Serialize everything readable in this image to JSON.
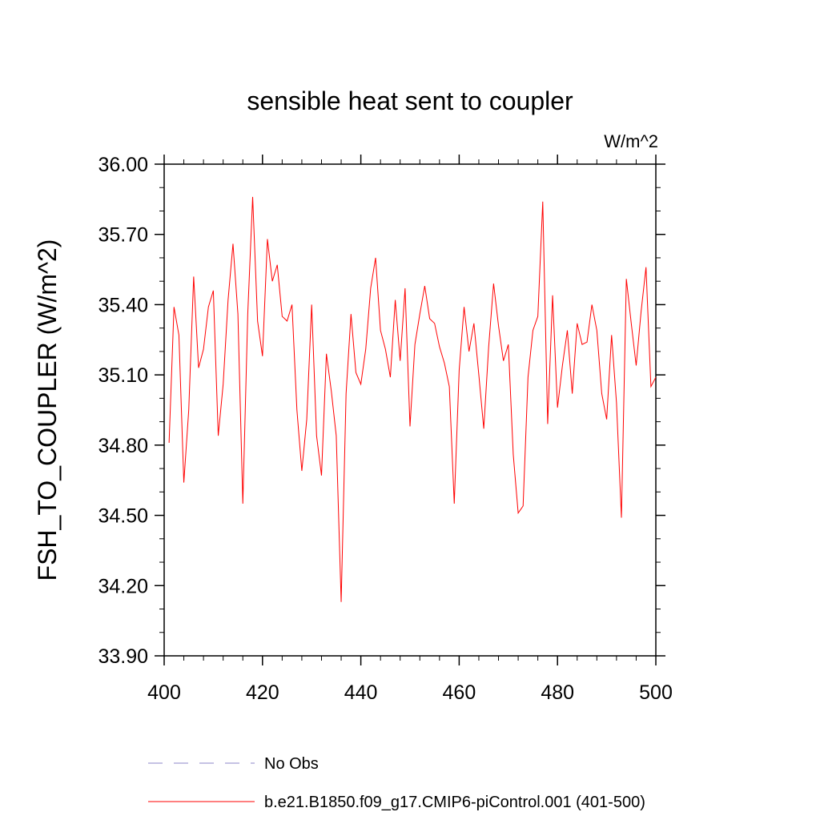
{
  "chart_data": {
    "type": "line",
    "title": "sensible heat sent to coupler",
    "units_label": "W/m^2",
    "ylabel": "FSH_TO_COUPLER  (W/m^2)",
    "xlabel": "",
    "xlim": [
      400,
      500
    ],
    "ylim": [
      33.9,
      36.0
    ],
    "x_ticks": [
      400,
      420,
      440,
      460,
      480,
      500
    ],
    "x_tick_labels": [
      "400",
      "420",
      "440",
      "460",
      "480",
      "500"
    ],
    "y_ticks": [
      33.9,
      34.2,
      34.5,
      34.8,
      35.1,
      35.4,
      35.7,
      36.0
    ],
    "y_tick_labels": [
      "33.90",
      "34.20",
      "34.50",
      "34.80",
      "35.10",
      "35.40",
      "35.70",
      "36.00"
    ],
    "grid": false,
    "legend": {
      "placement": "bottom",
      "entries": [
        {
          "label": "No Obs",
          "style": "dashed",
          "color": "#8c84c8"
        },
        {
          "label": "b.e21.B1850.f09_g17.CMIP6-piControl.001 (401-500)",
          "style": "solid",
          "color": "#ff0000"
        }
      ]
    },
    "series": [
      {
        "name": "b.e21.B1850.f09_g17.CMIP6-piControl.001 (401-500)",
        "color": "#ff0000",
        "x": [
          401,
          402,
          403,
          404,
          405,
          406,
          407,
          408,
          409,
          410,
          411,
          412,
          413,
          414,
          415,
          416,
          417,
          418,
          419,
          420,
          421,
          422,
          423,
          424,
          425,
          426,
          427,
          428,
          429,
          430,
          431,
          432,
          433,
          434,
          435,
          436,
          437,
          438,
          439,
          440,
          441,
          442,
          443,
          444,
          445,
          446,
          447,
          448,
          449,
          450,
          451,
          452,
          453,
          454,
          455,
          456,
          457,
          458,
          459,
          460,
          461,
          462,
          463,
          464,
          465,
          466,
          467,
          468,
          469,
          470,
          471,
          472,
          473,
          474,
          475,
          476,
          477,
          478,
          479,
          480,
          481,
          482,
          483,
          484,
          485,
          486,
          487,
          488,
          489,
          490,
          491,
          492,
          493,
          494,
          495,
          496,
          497,
          498,
          499,
          500
        ],
        "values": [
          34.81,
          35.39,
          35.27,
          34.64,
          34.95,
          35.52,
          35.13,
          35.21,
          35.39,
          35.46,
          34.84,
          35.06,
          35.42,
          35.66,
          35.36,
          34.55,
          35.36,
          35.86,
          35.33,
          35.18,
          35.68,
          35.5,
          35.57,
          35.35,
          35.33,
          35.4,
          34.95,
          34.69,
          34.91,
          35.4,
          34.84,
          34.67,
          35.19,
          35.03,
          34.84,
          34.13,
          35.02,
          35.36,
          35.11,
          35.06,
          35.21,
          35.47,
          35.6,
          35.29,
          35.21,
          35.09,
          35.42,
          35.16,
          35.47,
          34.88,
          35.23,
          35.36,
          35.48,
          35.34,
          35.32,
          35.22,
          35.15,
          35.05,
          34.55,
          35.12,
          35.39,
          35.2,
          35.32,
          35.1,
          34.87,
          35.22,
          35.49,
          35.31,
          35.16,
          35.23,
          34.76,
          34.51,
          34.54,
          35.09,
          35.29,
          35.35,
          35.84,
          34.89,
          35.44,
          34.96,
          35.14,
          35.29,
          35.02,
          35.32,
          35.23,
          35.24,
          35.4,
          35.29,
          35.02,
          34.91,
          35.27,
          34.98,
          34.49,
          35.51,
          35.32,
          35.14,
          35.37,
          35.56,
          35.05,
          35.09
        ]
      }
    ]
  }
}
